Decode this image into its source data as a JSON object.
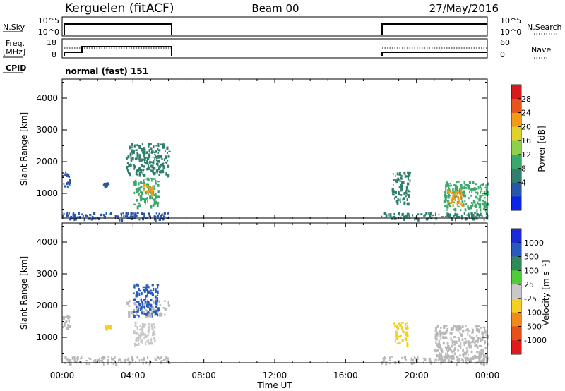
{
  "header": {
    "station": "Kerguelen (fitACF)",
    "beam": "Beam 00",
    "date": "27/May/2016"
  },
  "status_panels": {
    "nsky_label": "N.Sky",
    "nsky_ticks": [
      "10^5",
      "10^0"
    ],
    "nsearch_label": "N.Search",
    "nsearch_ticks": [
      "10^5",
      "10^0"
    ],
    "freq_label_1": "Freq.",
    "freq_label_2": "[MHz]",
    "freq_ticks": [
      "18",
      "8"
    ],
    "nave_label": "Nave",
    "nave_ticks": [
      "60",
      "0"
    ],
    "cpid_label": "CPID",
    "cpid_value": "normal (fast) 151"
  },
  "chart_data": [
    {
      "type": "heatmap",
      "title": "",
      "ylabel": "Slant Range [km]",
      "xlabel": "",
      "yticks": [
        "1000",
        "2000",
        "3000",
        "4000"
      ],
      "ylim": [
        200,
        4600
      ],
      "xlim_hours": [
        0,
        24
      ],
      "colorbar": {
        "label": "Power [dB]",
        "ticks": [
          "28",
          "24",
          "20",
          "16",
          "12",
          "8",
          "4"
        ],
        "range": [
          0,
          32
        ],
        "colors": [
          "#0a24e8",
          "#2a56a8",
          "#2f7f6c",
          "#3aa86a",
          "#8fd04a",
          "#e0d22a",
          "#f39a18",
          "#e8541a",
          "#d81a1a"
        ]
      },
      "data_windows_hours": [
        [
          0,
          6
        ],
        [
          18,
          24
        ]
      ],
      "echo_regions": [
        {
          "t": [
            0.0,
            6.0
          ],
          "r": [
            200,
            420
          ],
          "value_db": 6
        },
        {
          "t": [
            0.0,
            0.4
          ],
          "r": [
            1200,
            1700
          ],
          "value_db": 6
        },
        {
          "t": [
            2.3,
            2.6
          ],
          "r": [
            1250,
            1350
          ],
          "value_db": 6
        },
        {
          "t": [
            3.6,
            6.0
          ],
          "r": [
            1600,
            2600
          ],
          "value_db": 10
        },
        {
          "t": [
            4.0,
            5.4
          ],
          "r": [
            600,
            1500
          ],
          "value_db": 14
        },
        {
          "t": [
            4.5,
            5.2
          ],
          "r": [
            1000,
            1300
          ],
          "value_db": 24
        },
        {
          "t": [
            18.0,
            24.0
          ],
          "r": [
            200,
            420
          ],
          "value_db": 10
        },
        {
          "t": [
            18.6,
            19.6
          ],
          "r": [
            700,
            1700
          ],
          "value_db": 10
        },
        {
          "t": [
            21.5,
            24.0
          ],
          "r": [
            500,
            1400
          ],
          "value_db": 14
        },
        {
          "t": [
            21.7,
            22.6
          ],
          "r": [
            650,
            1150
          ],
          "value_db": 24
        }
      ]
    },
    {
      "type": "heatmap",
      "title": "",
      "ylabel": "Slant Range [km]",
      "xlabel": "Time UT",
      "xticks": [
        "00:00",
        "04:00",
        "08:00",
        "12:00",
        "16:00",
        "20:00",
        "00:00"
      ],
      "yticks": [
        "1000",
        "2000",
        "3000",
        "4000"
      ],
      "ylim": [
        200,
        4600
      ],
      "xlim_hours": [
        0,
        24
      ],
      "colorbar": {
        "label": "Velocity [m s⁻¹]",
        "ticks": [
          "1000",
          "500",
          "100",
          "25",
          "-25",
          "-100",
          "-500",
          "-1000"
        ],
        "range": [
          -1250,
          1250
        ],
        "colors": [
          "#1c2ad8",
          "#2a5ac0",
          "#2f8a5a",
          "#4fcc3a",
          "#c8c8c8",
          "#f5d020",
          "#f08a1a",
          "#e8501a",
          "#e01a1a"
        ]
      },
      "data_windows_hours": [
        [
          0,
          6
        ],
        [
          18,
          24
        ]
      ],
      "echo_regions": [
        {
          "t": [
            0.0,
            6.0
          ],
          "r": [
            200,
            420
          ],
          "class": "ground"
        },
        {
          "t": [
            0.0,
            0.4
          ],
          "r": [
            1300,
            1700
          ],
          "class": "ground"
        },
        {
          "t": [
            2.4,
            2.7
          ],
          "r": [
            1300,
            1400
          ],
          "value_ms": -400
        },
        {
          "t": [
            3.6,
            6.0
          ],
          "r": [
            1700,
            2200
          ],
          "class": "ground"
        },
        {
          "t": [
            4.0,
            5.4
          ],
          "r": [
            1700,
            2700
          ],
          "value_ms": 700
        },
        {
          "t": [
            4.0,
            5.2
          ],
          "r": [
            800,
            1500
          ],
          "value_ms": 60
        },
        {
          "t": [
            18.0,
            24.0
          ],
          "r": [
            200,
            420
          ],
          "class": "ground"
        },
        {
          "t": [
            18.7,
            19.5
          ],
          "r": [
            800,
            1500
          ],
          "value_ms": -150
        },
        {
          "t": [
            21.0,
            24.0
          ],
          "r": [
            300,
            1400
          ],
          "class": "ground"
        }
      ]
    }
  ]
}
